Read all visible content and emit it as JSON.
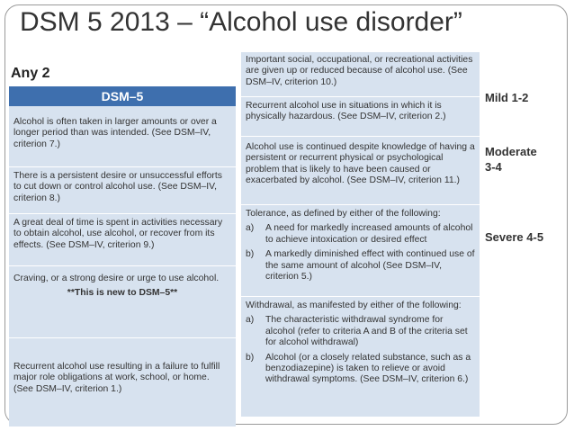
{
  "slide": {
    "title": "DSM 5 2013 – “Alcohol use disorder”",
    "any_label": "Any 2"
  },
  "left_panel": {
    "header": "DSM–5",
    "items": [
      "Alcohol is often taken in larger amounts or over a longer period than was intended. (See DSM–IV, criterion 7.)",
      "There is a persistent desire or unsuccessful efforts to cut down or control alcohol use. (See DSM–IV, criterion 8.)",
      "A great deal of time is spent in activities necessary to obtain alcohol, use alcohol, or recover from its effects. (See DSM–IV, criterion 9.)",
      "Craving, or a strong desire or urge to use alcohol.",
      "Recurrent alcohol use resulting in a failure to fulfill major role obligations at work, school, or home. (See DSM–IV, criterion 1.)"
    ],
    "new_note": "**This is new to DSM–5**"
  },
  "right_panel": {
    "items": [
      "Important social, occupational, or recreational activities are given up or reduced because of alcohol use. (See DSM–IV, criterion 10.)",
      "Recurrent alcohol use in situations in which it is physically hazardous. (See DSM–IV, criterion 2.)",
      "Alcohol use is continued despite knowledge of having a persistent or recurrent physical or psychological problem that is likely to have been caused or exacerbated by alcohol. (See DSM–IV, criterion 11.)"
    ],
    "tolerance": {
      "intro": "Tolerance, as defined by either of the following:",
      "a_label": "a)",
      "a": "A need for markedly increased amounts of alcohol to achieve intoxication or desired effect",
      "b_label": "b)",
      "b": "A markedly diminished effect with continued use of the same amount of alcohol (See DSM–IV, criterion 5.)"
    },
    "withdrawal": {
      "intro": "Withdrawal, as manifested by either of the following:",
      "a_label": "a)",
      "a": "The characteristic withdrawal syndrome for alcohol (refer to criteria A and B of the criteria set for alcohol withdrawal)",
      "b_label": "b)",
      "b": "Alcohol (or a closely related substance, such as a benzodiazepine) is taken to relieve or avoid withdrawal symptoms. (See DSM–IV, criterion 6.)"
    }
  },
  "severity": {
    "mild": "Mild 1-2",
    "moderate_line1": "Moderate",
    "moderate_line2": "3-4",
    "severe": "Severe 4-5"
  }
}
